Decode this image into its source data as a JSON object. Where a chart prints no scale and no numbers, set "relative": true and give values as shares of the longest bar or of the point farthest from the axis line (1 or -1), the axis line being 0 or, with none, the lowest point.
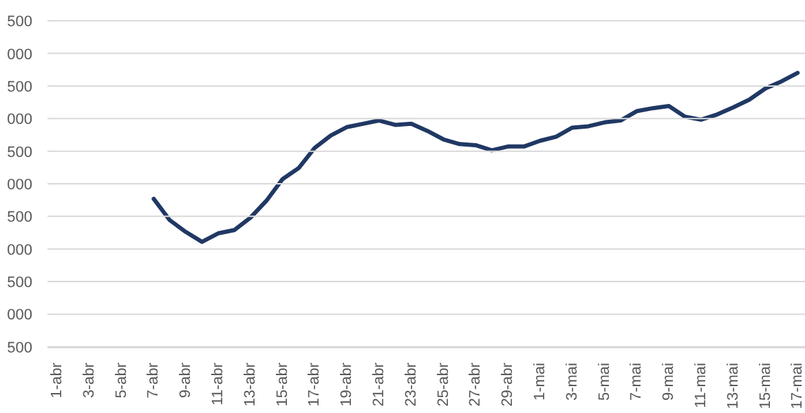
{
  "chart_data": {
    "type": "line",
    "categories": [
      "1-abr",
      null,
      "3-abr",
      null,
      "5-abr",
      null,
      "7-abr",
      null,
      "9-abr",
      null,
      "11-abr",
      null,
      "13-abr",
      null,
      "15-abr",
      null,
      "17-abr",
      null,
      "19-abr",
      null,
      "21-abr",
      null,
      "23-abr",
      null,
      "25-abr",
      null,
      "27-abr",
      null,
      "29-abr",
      null,
      "1-mai",
      null,
      "3-mai",
      null,
      "5-mai",
      null,
      "7-mai",
      null,
      "9-mai",
      null,
      "11-mai",
      null,
      "13-mai",
      null,
      "15-mai",
      null,
      "17-mai"
    ],
    "series": [
      {
        "color": "#203864",
        "values": [
          null,
          null,
          null,
          null,
          null,
          null,
          0.54,
          0.462,
          0.419,
          0.383,
          0.414,
          0.426,
          0.471,
          0.533,
          0.612,
          0.652,
          0.726,
          0.771,
          0.802,
          0.814,
          0.826,
          0.81,
          0.814,
          0.788,
          0.757,
          0.74,
          0.736,
          0.717,
          0.731,
          0.731,
          0.752,
          0.767,
          0.8,
          0.805,
          0.819,
          0.826,
          0.86,
          0.871,
          0.879,
          0.84,
          0.829,
          0.848,
          0.874,
          0.902,
          0.943,
          0.969,
          1
        ]
      }
    ],
    "relative": true,
    "annotations": [
      "500",
      "000",
      "500",
      "000",
      "500",
      "000",
      "500",
      "000",
      "500",
      "000",
      "500"
    ],
    "grid": "y",
    "marker": "none",
    "line_style": "solid"
  }
}
